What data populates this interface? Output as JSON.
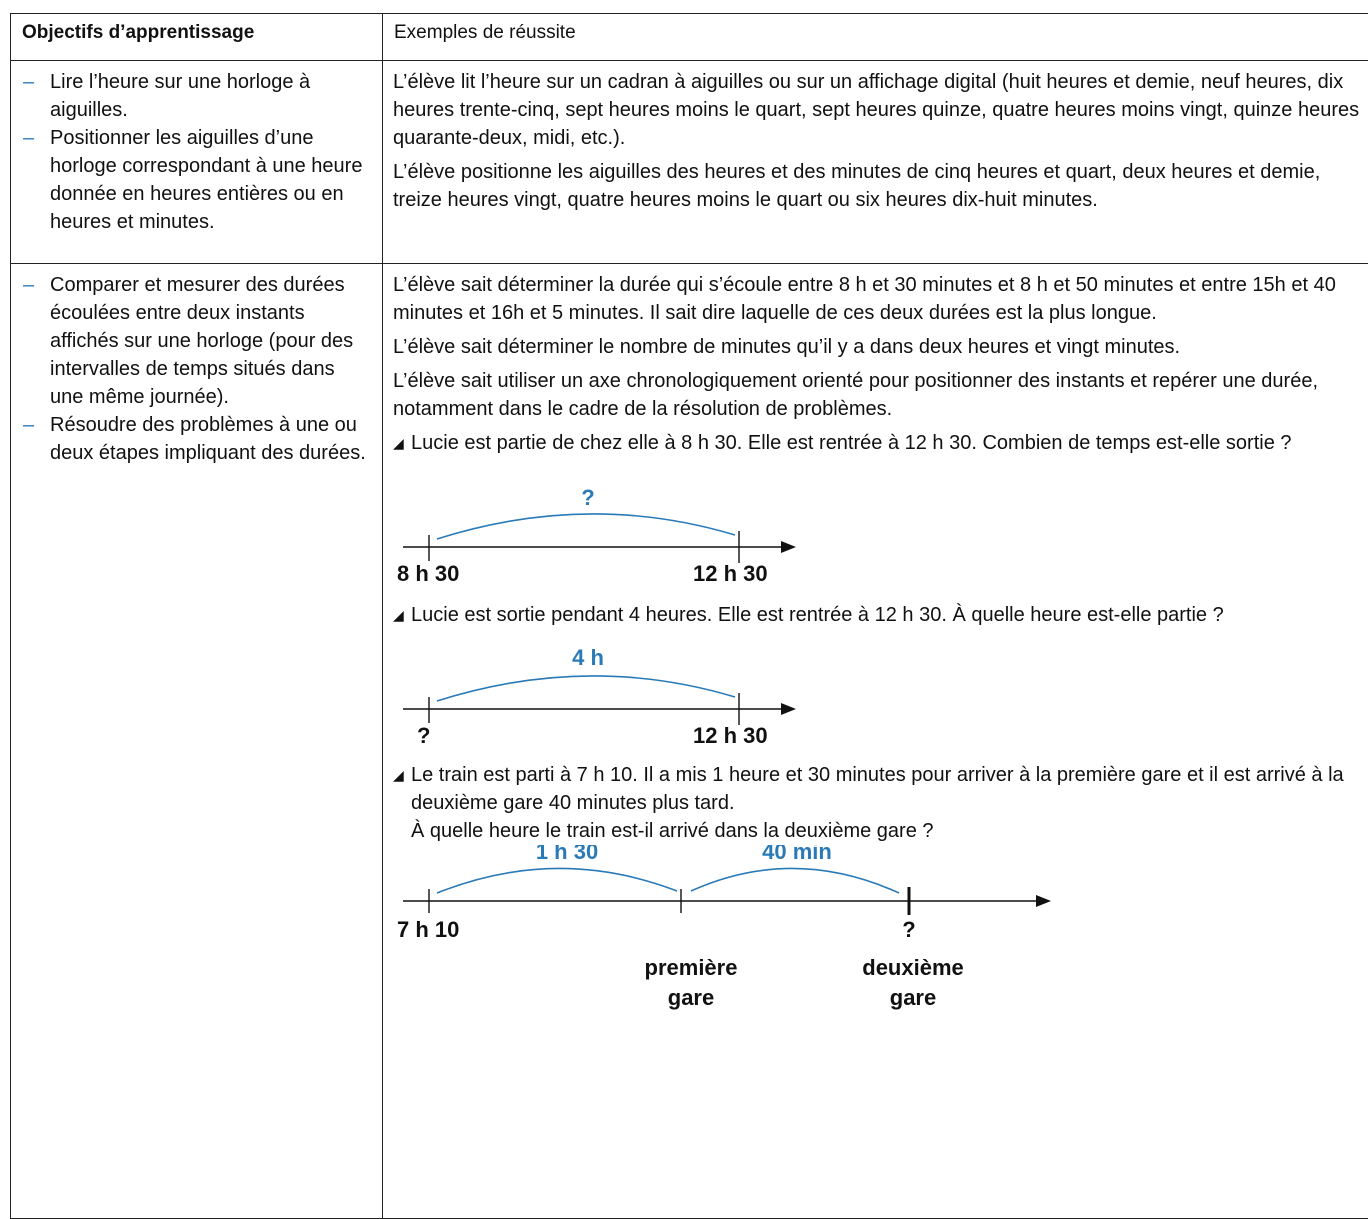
{
  "header": {
    "col1": "Objectifs d’apprentissage",
    "col2": "Exemples de réussite"
  },
  "row1": {
    "objectives": [
      "Lire l’heure sur une horloge à aiguilles.",
      "Positionner les aiguilles d’une horloge correspondant à une heure donnée en heures entières ou en heures et minutes."
    ],
    "examples": [
      "L’élève lit l’heure sur un cadran à aiguilles ou sur un affichage digital (huit heures et demie, neuf heures, dix heures trente-cinq, sept heures moins le quart, sept heures quinze, quatre heures moins vingt, quinze heures quarante-deux, midi, etc.).",
      "L’élève positionne les aiguilles des heures et des minutes de cinq heures et quart, deux heures et demie, treize heures vingt, quatre heures moins le quart ou six heures dix-huit minutes."
    ]
  },
  "row2": {
    "objectives": [
      "Comparer et mesurer des durées écoulées entre deux instants affichés sur une horloge (pour des intervalles de temps situés dans une même journée).",
      "Résoudre des problèmes à une ou deux étapes impliquant des durées."
    ],
    "dash": "–",
    "examples": [
      "L’élève sait déterminer la durée qui s’écoule entre 8 h et 30 minutes et 8 h et 50 minutes et entre 15h et 40 minutes et 16h et 5 minutes. Il sait dire laquelle de ces deux durées est la plus longue.",
      "L’élève sait déterminer le nombre de minutes qu’il y a dans deux heures et vingt minutes.",
      "L’élève sait utiliser un axe chronologiquement orienté pour positionner des instants et repérer une durée, notamment dans le cadre de la résolution de problèmes."
    ],
    "problem1": {
      "text": "Lucie est partie de chez elle à 8 h 30. Elle est rentrée à 12 h 30. Combien de temps est-elle sortie ?",
      "arc_label": "?",
      "start_label": "8 h 30",
      "end_label": "12 h 30"
    },
    "problem2": {
      "text": "Lucie est sortie pendant 4 heures. Elle est rentrée à 12 h 30. À quelle heure est-elle partie ?",
      "arc_label": "4 h",
      "start_label": "?",
      "end_label": "12 h 30"
    },
    "problem3": {
      "text": "Le train est parti à 7 h 10. Il a mis 1 heure et 30 minutes pour arriver à la première gare et il est arrivé à la deuxième gare 40 minutes plus tard.",
      "question": "À quelle heure le train est-il arrivé dans la deuxième gare ?",
      "arc1_label": "1 h 30",
      "arc2_label": "40 min",
      "start_label": "7 h 10",
      "mid_label_line1": "première",
      "mid_label_line2": "gare",
      "end_q_label": "?",
      "end_label_line1": "deuxième",
      "end_label_line2": "gare"
    },
    "bullet_glyph": "◢"
  },
  "colors": {
    "accent_blue": "#2a7ab8",
    "border": "#222222"
  }
}
